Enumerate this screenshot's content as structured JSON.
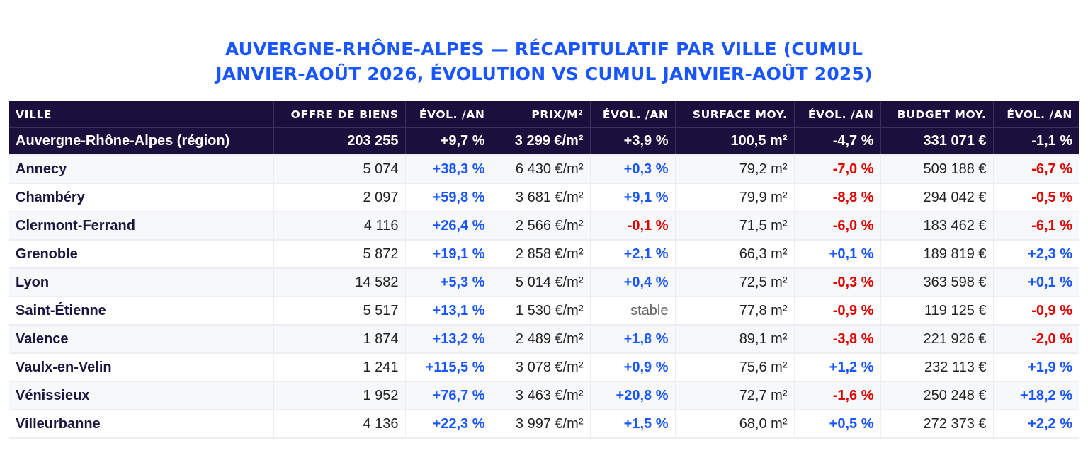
{
  "title": {
    "line1": "AUVERGNE-RHÔNE-ALPES — RÉCAPITULATIF PAR VILLE (CUMUL",
    "line2": "JANVIER-AOÛT 2026, ÉVOLUTION VS CUMUL JANVIER-AOÛT 2025)"
  },
  "colors": {
    "title": "#1a56ff",
    "header_bg": "#1b0f3d",
    "positive": "#1a56ff",
    "negative": "#e00000",
    "stable": "#666666"
  },
  "chart_data": {
    "type": "table",
    "columns": [
      "VILLE",
      "OFFRE DE BIENS",
      "ÉVOL. /AN",
      "PRIX/M²",
      "ÉVOL. /AN",
      "SURFACE MOY.",
      "ÉVOL. /AN",
      "BUDGET MOY.",
      "ÉVOL. /AN"
    ],
    "region": [
      "Auvergne-Rhône-Alpes (région)",
      "203 255",
      "+9,7 %",
      "3 299 €/m²",
      "+3,9 %",
      "100,5 m²",
      "-4,7 %",
      "331 071 €",
      "-1,1 %"
    ],
    "rows": [
      [
        "Annecy",
        "5 074",
        "+38,3 %",
        "6 430 €/m²",
        "+0,3 %",
        "79,2 m²",
        "-7,0 %",
        "509 188 €",
        "-6,7 %"
      ],
      [
        "Chambéry",
        "2 097",
        "+59,8 %",
        "3 681 €/m²",
        "+9,1 %",
        "79,9 m²",
        "-8,8 %",
        "294 042 €",
        "-0,5 %"
      ],
      [
        "Clermont-Ferrand",
        "4 116",
        "+26,4 %",
        "2 566 €/m²",
        "-0,1 %",
        "71,5 m²",
        "-6,0 %",
        "183 462 €",
        "-6,1 %"
      ],
      [
        "Grenoble",
        "5 872",
        "+19,1 %",
        "2 858 €/m²",
        "+2,1 %",
        "66,3 m²",
        "+0,1 %",
        "189 819 €",
        "+2,3 %"
      ],
      [
        "Lyon",
        "14 582",
        "+5,3 %",
        "5 014 €/m²",
        "+0,4 %",
        "72,5 m²",
        "-0,3 %",
        "363 598 €",
        "+0,1 %"
      ],
      [
        "Saint-Étienne",
        "5 517",
        "+13,1 %",
        "1 530 €/m²",
        "stable",
        "77,8 m²",
        "-0,9 %",
        "119 125 €",
        "-0,9 %"
      ],
      [
        "Valence",
        "1 874",
        "+13,2 %",
        "2 489 €/m²",
        "+1,8 %",
        "89,1 m²",
        "-3,8 %",
        "221 926 €",
        "-2,0 %"
      ],
      [
        "Vaulx-en-Velin",
        "1 241",
        "+115,5 %",
        "3 078 €/m²",
        "+0,9 %",
        "75,6 m²",
        "+1,2 %",
        "232 113 €",
        "+1,9 %"
      ],
      [
        "Vénissieux",
        "1 952",
        "+76,7 %",
        "3 463 €/m²",
        "+20,8 %",
        "72,7 m²",
        "-1,6 %",
        "250 248 €",
        "+18,2 %"
      ],
      [
        "Villeurbanne",
        "4 136",
        "+22,3 %",
        "3 997 €/m²",
        "+1,5 %",
        "68,0 m²",
        "+0,5 %",
        "272 373 €",
        "+2,2 %"
      ]
    ]
  }
}
